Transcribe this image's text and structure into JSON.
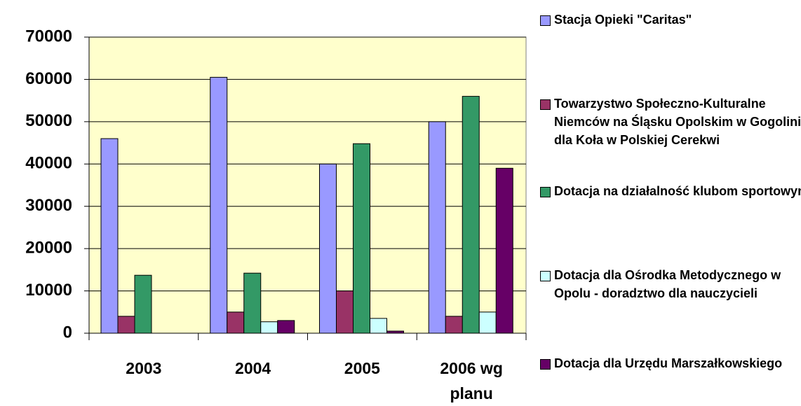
{
  "chart_data": {
    "type": "bar",
    "categories": [
      "2003",
      "2004",
      "2005",
      "2006 wg planu"
    ],
    "series": [
      {
        "name": "Stacja Opieki \"Caritas\"",
        "color": "#9999ff",
        "values": [
          46000,
          60500,
          40000,
          50000
        ]
      },
      {
        "name": "Towarzystwo Społeczno-Kulturalne Niemców na Śląsku Opolskim w Gogolinie dla Koła w Polskiej Cerekwi",
        "color": "#993366",
        "values": [
          4000,
          5000,
          10000,
          4000
        ]
      },
      {
        "name": "Dotacja na działalność klubom sportowym",
        "color": "#339966",
        "values": [
          13700,
          14200,
          44800,
          56000
        ]
      },
      {
        "name": "Dotacja dla Ośrodka Metodycznego w Opolu - doradztwo dla nauczycieli",
        "color": "#ccffff",
        "values": [
          0,
          2700,
          3500,
          5000
        ]
      },
      {
        "name": "Dotacja dla Urzędu Marszałkowskiego",
        "color": "#660066",
        "values": [
          0,
          3000,
          500,
          39000
        ]
      }
    ],
    "ylim": [
      0,
      70000
    ],
    "yticks": [
      0,
      10000,
      20000,
      30000,
      40000,
      50000,
      60000,
      70000
    ],
    "grid": true,
    "plot_background": "#ffffcc",
    "legend": "right"
  }
}
